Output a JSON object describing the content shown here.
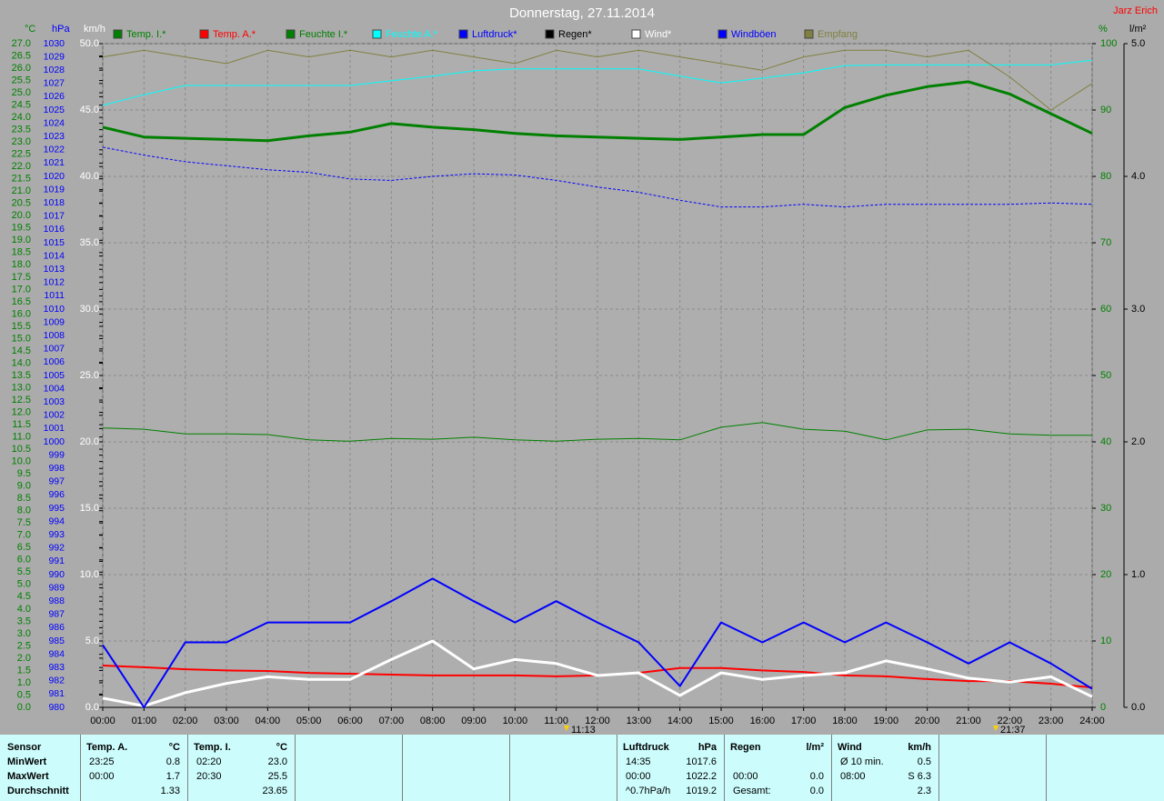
{
  "chart_data": {
    "type": "line",
    "title": "Donnerstag, 27.11.2014",
    "author": "Jarz Erich",
    "annotations": [
      "11:13",
      "21:37"
    ],
    "x": [
      0,
      1,
      2,
      3,
      4,
      5,
      6,
      7,
      8,
      9,
      10,
      11,
      12,
      13,
      14,
      15,
      16,
      17,
      18,
      19,
      20,
      21,
      22,
      23,
      24
    ],
    "xlim": [
      0,
      24
    ],
    "xticks": [
      {
        "value": 0,
        "label": "00:00"
      },
      {
        "value": 1,
        "label": "01:00"
      },
      {
        "value": 2,
        "label": "02:00"
      },
      {
        "value": 3,
        "label": "03:00"
      },
      {
        "value": 4,
        "label": "04:00"
      },
      {
        "value": 5,
        "label": "05:00"
      },
      {
        "value": 6,
        "label": "06:00"
      },
      {
        "value": 7,
        "label": "07:00"
      },
      {
        "value": 8,
        "label": "08:00"
      },
      {
        "value": 9,
        "label": "09:00"
      },
      {
        "value": 10,
        "label": "10:00"
      },
      {
        "value": 11,
        "label": "11:00"
      },
      {
        "value": 12,
        "label": "12:00"
      },
      {
        "value": 13,
        "label": "13:00"
      },
      {
        "value": 14,
        "label": "14:00"
      },
      {
        "value": 15,
        "label": "15:00"
      },
      {
        "value": 16,
        "label": "16:00"
      },
      {
        "value": 17,
        "label": "17:00"
      },
      {
        "value": 18,
        "label": "18:00"
      },
      {
        "value": 19,
        "label": "19:00"
      },
      {
        "value": 20,
        "label": "20:00"
      },
      {
        "value": 21,
        "label": "21:00"
      },
      {
        "value": 22,
        "label": "22:00"
      },
      {
        "value": 23,
        "label": "23:00"
      },
      {
        "value": 24,
        "label": "24:00"
      }
    ],
    "grid": true,
    "y_axes": [
      {
        "unit": "°C",
        "color": "#008000",
        "lim": [
          0,
          27
        ],
        "ticks": [
          {
            "value": 0,
            "label": "0.0"
          },
          {
            "value": 0.5,
            "label": "0.5"
          },
          {
            "value": 1,
            "label": "1.0"
          },
          {
            "value": 1.5,
            "label": "1.5"
          },
          {
            "value": 2,
            "label": "2.0"
          },
          {
            "value": 2.5,
            "label": "2.5"
          },
          {
            "value": 3,
            "label": "3.0"
          },
          {
            "value": 3.5,
            "label": "3.5"
          },
          {
            "value": 4,
            "label": "4.0"
          },
          {
            "value": 4.5,
            "label": "4.5"
          },
          {
            "value": 5,
            "label": "5.0"
          },
          {
            "value": 5.5,
            "label": "5.5"
          },
          {
            "value": 6,
            "label": "6.0"
          },
          {
            "value": 6.5,
            "label": "6.5"
          },
          {
            "value": 7,
            "label": "7.0"
          },
          {
            "value": 7.5,
            "label": "7.5"
          },
          {
            "value": 8,
            "label": "8.0"
          },
          {
            "value": 8.5,
            "label": "8.5"
          },
          {
            "value": 9,
            "label": "9.0"
          },
          {
            "value": 9.5,
            "label": "9.5"
          },
          {
            "value": 10,
            "label": "10.0"
          },
          {
            "value": 10.5,
            "label": "10.5"
          },
          {
            "value": 11,
            "label": "11.0"
          },
          {
            "value": 11.5,
            "label": "11.5"
          },
          {
            "value": 12,
            "label": "12.0"
          },
          {
            "value": 12.5,
            "label": "12.5"
          },
          {
            "value": 13,
            "label": "13.0"
          },
          {
            "value": 13.5,
            "label": "13.5"
          },
          {
            "value": 14,
            "label": "14.0"
          },
          {
            "value": 14.5,
            "label": "14.5"
          },
          {
            "value": 15,
            "label": "15.0"
          },
          {
            "value": 15.5,
            "label": "15.5"
          },
          {
            "value": 16,
            "label": "16.0"
          },
          {
            "value": 16.5,
            "label": "16.5"
          },
          {
            "value": 17,
            "label": "17.0"
          },
          {
            "value": 17.5,
            "label": "17.5"
          },
          {
            "value": 18,
            "label": "18.0"
          },
          {
            "value": 18.5,
            "label": "18.5"
          },
          {
            "value": 19,
            "label": "19.0"
          },
          {
            "value": 19.5,
            "label": "19.5"
          },
          {
            "value": 20,
            "label": "20.0"
          },
          {
            "value": 20.5,
            "label": "20.5"
          },
          {
            "value": 21,
            "label": "21.0"
          },
          {
            "value": 21.5,
            "label": "21.5"
          },
          {
            "value": 22,
            "label": "22.0"
          },
          {
            "value": 22.5,
            "label": "22.5"
          },
          {
            "value": 23,
            "label": "23.0"
          },
          {
            "value": 23.5,
            "label": "23.5"
          },
          {
            "value": 24,
            "label": "24.0"
          },
          {
            "value": 24.5,
            "label": "24.5"
          },
          {
            "value": 25,
            "label": "25.0"
          },
          {
            "value": 25.5,
            "label": "25.5"
          },
          {
            "value": 26,
            "label": "26.0"
          },
          {
            "value": 26.5,
            "label": "26.5"
          },
          {
            "value": 27,
            "label": "27.0"
          }
        ]
      },
      {
        "unit": "hPa",
        "color": "#0000ff",
        "lim": [
          980,
          1030
        ],
        "ticks": [
          980,
          981,
          982,
          983,
          984,
          985,
          986,
          987,
          988,
          989,
          990,
          991,
          992,
          993,
          994,
          995,
          996,
          997,
          998,
          999,
          1000,
          1001,
          1002,
          1003,
          1004,
          1005,
          1006,
          1007,
          1008,
          1009,
          1010,
          1011,
          1012,
          1013,
          1014,
          1015,
          1016,
          1017,
          1018,
          1019,
          1020,
          1021,
          1022,
          1023,
          1024,
          1025,
          1026,
          1027,
          1028,
          1029,
          1030
        ]
      },
      {
        "unit": "km/h",
        "color": "#ffffff",
        "lim": [
          0,
          50
        ],
        "grid": true,
        "ticks": [
          {
            "value": 0,
            "label": "0.0"
          },
          {
            "value": 5,
            "label": "5.0"
          },
          {
            "value": 10,
            "label": "10.0"
          },
          {
            "value": 15,
            "label": "15.0"
          },
          {
            "value": 20,
            "label": "20.0"
          },
          {
            "value": 25,
            "label": "25.0"
          },
          {
            "value": 30,
            "label": "30.0"
          },
          {
            "value": 35,
            "label": "35.0"
          },
          {
            "value": 40,
            "label": "40.0"
          },
          {
            "value": 45,
            "label": "45.0"
          },
          {
            "value": 50,
            "label": "50.0"
          }
        ]
      },
      {
        "unit": "%",
        "color": "#008000",
        "lim": [
          0,
          100
        ],
        "ticks": [
          0,
          10,
          20,
          30,
          40,
          50,
          60,
          70,
          80,
          90,
          100
        ]
      },
      {
        "unit": "l/m²",
        "color": "#000000",
        "lim": [
          0,
          5
        ],
        "ticks": [
          {
            "value": 0,
            "label": "0.0"
          },
          {
            "value": 1,
            "label": "1.0"
          },
          {
            "value": 2,
            "label": "2.0"
          },
          {
            "value": 3,
            "label": "3.0"
          },
          {
            "value": 4,
            "label": "4.0"
          },
          {
            "value": 5,
            "label": "5.0"
          }
        ]
      }
    ],
    "series": [
      {
        "name": "Temp. I.*",
        "color": "#008000",
        "axis": 0,
        "width": 3,
        "values": [
          23.6,
          23.2,
          23.15,
          23.1,
          23.05,
          23.25,
          23.4,
          23.75,
          23.6,
          23.5,
          23.35,
          23.25,
          23.2,
          23.15,
          23.1,
          23.2,
          23.3,
          23.3,
          24.4,
          24.9,
          25.25,
          25.45,
          24.95,
          24.15,
          23.35
        ]
      },
      {
        "name": "Temp. A.*",
        "color": "#ff0000",
        "axis": 0,
        "width": 2,
        "values": [
          1.7,
          1.63,
          1.55,
          1.5,
          1.48,
          1.4,
          1.37,
          1.33,
          1.3,
          1.3,
          1.3,
          1.26,
          1.3,
          1.4,
          1.6,
          1.6,
          1.5,
          1.44,
          1.3,
          1.26,
          1.15,
          1.07,
          1.07,
          0.96,
          0.81
        ]
      },
      {
        "name": "Feuchte I.*",
        "color": "#008000",
        "axis": 3,
        "width": 1,
        "values": [
          42.1,
          41.9,
          41.2,
          41.2,
          41.1,
          40.3,
          40.1,
          40.5,
          40.4,
          40.7,
          40.3,
          40.1,
          40.4,
          40.5,
          40.3,
          42.2,
          42.9,
          41.9,
          41.6,
          40.3,
          41.8,
          41.9,
          41.2,
          41.0,
          41.0
        ]
      },
      {
        "name": "Feuchte A.*",
        "color": "#00ffff",
        "axis": 3,
        "width": 1,
        "values": [
          90.7,
          92.3,
          93.7,
          93.7,
          93.7,
          93.7,
          93.7,
          94.4,
          95.1,
          95.9,
          96.2,
          96.2,
          96.2,
          96.2,
          95.1,
          94.1,
          94.8,
          95.6,
          96.7,
          96.8,
          96.8,
          96.8,
          96.8,
          96.8,
          97.5
        ]
      },
      {
        "name": "Luftdruck*",
        "color": "#0000ff",
        "axis": 1,
        "width": 1,
        "dashed": true,
        "values": [
          1022.2,
          1021.6,
          1021.1,
          1020.8,
          1020.5,
          1020.3,
          1019.8,
          1019.7,
          1020.0,
          1020.2,
          1020.1,
          1019.7,
          1019.2,
          1018.8,
          1018.2,
          1017.7,
          1017.7,
          1017.9,
          1017.7,
          1017.9,
          1017.9,
          1017.9,
          1017.9,
          1018.0,
          1017.9
        ]
      },
      {
        "name": "Regen*",
        "color": "#000000",
        "axis": 4,
        "width": 1,
        "values": [
          0,
          0,
          0,
          0,
          0,
          0,
          0,
          0,
          0,
          0,
          0,
          0,
          0,
          0,
          0,
          0,
          0,
          0,
          0,
          0,
          0,
          0,
          0,
          0,
          0
        ]
      },
      {
        "name": "Wind*",
        "color": "#ffffff",
        "axis": 2,
        "width": 3,
        "values": [
          0.7,
          0.1,
          1.1,
          1.8,
          2.3,
          2.1,
          2.1,
          3.6,
          5.0,
          2.9,
          3.6,
          3.3,
          2.4,
          2.6,
          0.9,
          2.6,
          2.1,
          2.4,
          2.6,
          3.5,
          2.9,
          2.2,
          1.9,
          2.3,
          0.8
        ]
      },
      {
        "name": "Windböen",
        "color": "#0000ff",
        "axis": 2,
        "width": 2,
        "values": [
          4.7,
          0,
          4.9,
          4.9,
          6.4,
          6.4,
          6.4,
          8.0,
          9.7,
          8.0,
          6.4,
          8.0,
          6.4,
          4.9,
          1.6,
          6.4,
          4.9,
          6.4,
          4.9,
          6.4,
          4.9,
          3.3,
          4.9,
          3.3,
          1.4
        ]
      },
      {
        "name": "Empfang",
        "color": "#808040",
        "axis": 3,
        "width": 1,
        "values": [
          98,
          99,
          98,
          97,
          99,
          98,
          99,
          98,
          99,
          98,
          97,
          99,
          98,
          99,
          98,
          97,
          96,
          98,
          99,
          99,
          98,
          99,
          95,
          90,
          94
        ]
      }
    ]
  },
  "summary": {
    "labels": [
      "Sensor",
      "MinWert",
      "MaxWert",
      "Durchschnitt"
    ],
    "blocks": [
      {
        "header": [
          "Temp. A.",
          "°C"
        ],
        "rows": [
          {
            "time": "23:25",
            "value": "0.8"
          },
          {
            "time": "00:00",
            "value": "1.7"
          },
          {
            "value": "1.33"
          }
        ]
      },
      {
        "header": [
          "Temp. I.",
          "°C"
        ],
        "rows": [
          {
            "time": "02:20",
            "value": "23.0"
          },
          {
            "time": "20:30",
            "value": "25.5"
          },
          {
            "value": "23.65"
          }
        ]
      },
      {
        "header": [
          "Luftdruck",
          "hPa"
        ],
        "rows": [
          {
            "time": "14:35",
            "value": "1017.6"
          },
          {
            "time": "00:00",
            "value": "1022.2"
          },
          {
            "time": "^0.7hPa/h",
            "value": "1019.2"
          }
        ]
      },
      {
        "header": [
          "Regen",
          "l/m²"
        ],
        "rows": [
          {},
          {
            "time": "00:00",
            "value": "0.0"
          },
          {
            "time": "Gesamt:",
            "value": "0.0"
          }
        ]
      },
      {
        "header": [
          "Wind",
          "km/h"
        ],
        "rows": [
          {
            "time": "Ø 10 min.",
            "value": "0.5"
          },
          {
            "time": "08:00",
            "value": "S 6.3"
          },
          {
            "value": "2.3"
          }
        ]
      }
    ]
  }
}
